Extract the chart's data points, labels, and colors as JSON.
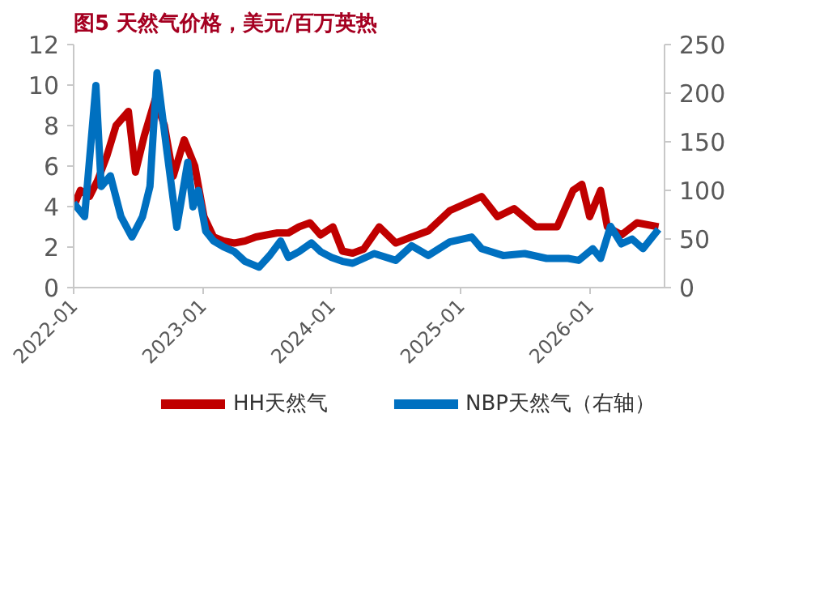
{
  "chart_data": {
    "type": "line",
    "title": "图5  天然气价格，美元/百万英热",
    "xlim": [
      "2022-01",
      "2026-08"
    ],
    "xticks": [
      "2022-01",
      "2023-01",
      "2024-01",
      "2025-01",
      "2026-01"
    ],
    "ylim": [
      0,
      12
    ],
    "yticks": [
      0,
      2,
      4,
      6,
      8,
      10,
      12
    ],
    "y2lim": [
      0,
      250
    ],
    "y2ticks": [
      0,
      50,
      100,
      150,
      200,
      250
    ],
    "grid": false,
    "legend": "bottom",
    "marker": "none",
    "line_style": "solid",
    "series": [
      {
        "name": "HH天然气",
        "color": "#c00000",
        "x": [
          "2022-01-01",
          "2022-01-20",
          "2022-02-15",
          "2022-03-10",
          "2022-04-05",
          "2022-05-01",
          "2022-06-05",
          "2022-06-25",
          "2022-07-20",
          "2022-08-20",
          "2022-09-15",
          "2022-10-10",
          "2022-11-10",
          "2022-12-10",
          "2023-01-05",
          "2023-02-01",
          "2023-03-01",
          "2023-04-01",
          "2023-05-01",
          "2023-06-01",
          "2023-07-01",
          "2023-08-01",
          "2023-09-01",
          "2023-10-01",
          "2023-11-01",
          "2023-12-01",
          "2024-01-05",
          "2024-02-01",
          "2024-03-01",
          "2024-04-01",
          "2024-05-15",
          "2024-07-01",
          "2024-08-15",
          "2024-10-01",
          "2024-12-01",
          "2025-03-01",
          "2025-04-15",
          "2025-06-01",
          "2025-08-01",
          "2025-10-01",
          "2025-11-15",
          "2025-12-10",
          "2026-01-01",
          "2026-02-01",
          "2026-02-20",
          "2026-04-01",
          "2026-05-15",
          "2026-07-15"
        ],
        "values": [
          4.0,
          4.8,
          4.5,
          5.3,
          6.5,
          8.0,
          8.7,
          5.7,
          7.5,
          9.3,
          8.0,
          5.5,
          7.3,
          6.0,
          3.5,
          2.5,
          2.3,
          2.2,
          2.3,
          2.5,
          2.6,
          2.7,
          2.7,
          3.0,
          3.2,
          2.6,
          3.0,
          1.8,
          1.7,
          1.9,
          3.0,
          2.2,
          2.5,
          2.8,
          3.8,
          4.5,
          3.5,
          3.9,
          3.0,
          3.0,
          4.8,
          5.1,
          3.5,
          4.8,
          3.0,
          2.6,
          3.2,
          3.0
        ]
      },
      {
        "name": "NBP天然气（右轴）",
        "color": "#0070c0",
        "axis": "y2",
        "x": [
          "2022-01-01",
          "2022-02-01",
          "2022-03-05",
          "2022-03-20",
          "2022-04-15",
          "2022-05-15",
          "2022-06-15",
          "2022-07-15",
          "2022-08-05",
          "2022-08-25",
          "2022-09-20",
          "2022-10-20",
          "2022-11-20",
          "2022-12-05",
          "2022-12-20",
          "2023-01-10",
          "2023-02-01",
          "2023-03-01",
          "2023-04-01",
          "2023-05-01",
          "2023-06-10",
          "2023-07-10",
          "2023-08-10",
          "2023-09-01",
          "2023-10-01",
          "2023-11-05",
          "2023-12-01",
          "2024-01-01",
          "2024-02-01",
          "2024-03-01",
          "2024-05-01",
          "2024-07-01",
          "2024-08-15",
          "2024-10-01",
          "2024-12-01",
          "2025-02-01",
          "2025-03-01",
          "2025-05-01",
          "2025-07-01",
          "2025-09-01",
          "2025-11-01",
          "2025-12-01",
          "2026-01-10",
          "2026-02-01",
          "2026-03-01",
          "2026-04-01",
          "2026-05-01",
          "2026-06-01",
          "2026-07-15"
        ],
        "values": [
          87,
          73,
          208,
          104,
          115,
          73,
          52,
          73,
          104,
          221,
          146,
          62,
          129,
          83,
          100,
          58,
          48,
          42,
          37,
          27,
          21,
          33,
          48,
          31,
          37,
          46,
          37,
          31,
          27,
          25,
          35,
          28,
          43,
          33,
          47,
          52,
          40,
          33,
          35,
          30,
          30,
          28,
          40,
          30,
          63,
          45,
          50,
          40,
          60
        ]
      }
    ]
  }
}
